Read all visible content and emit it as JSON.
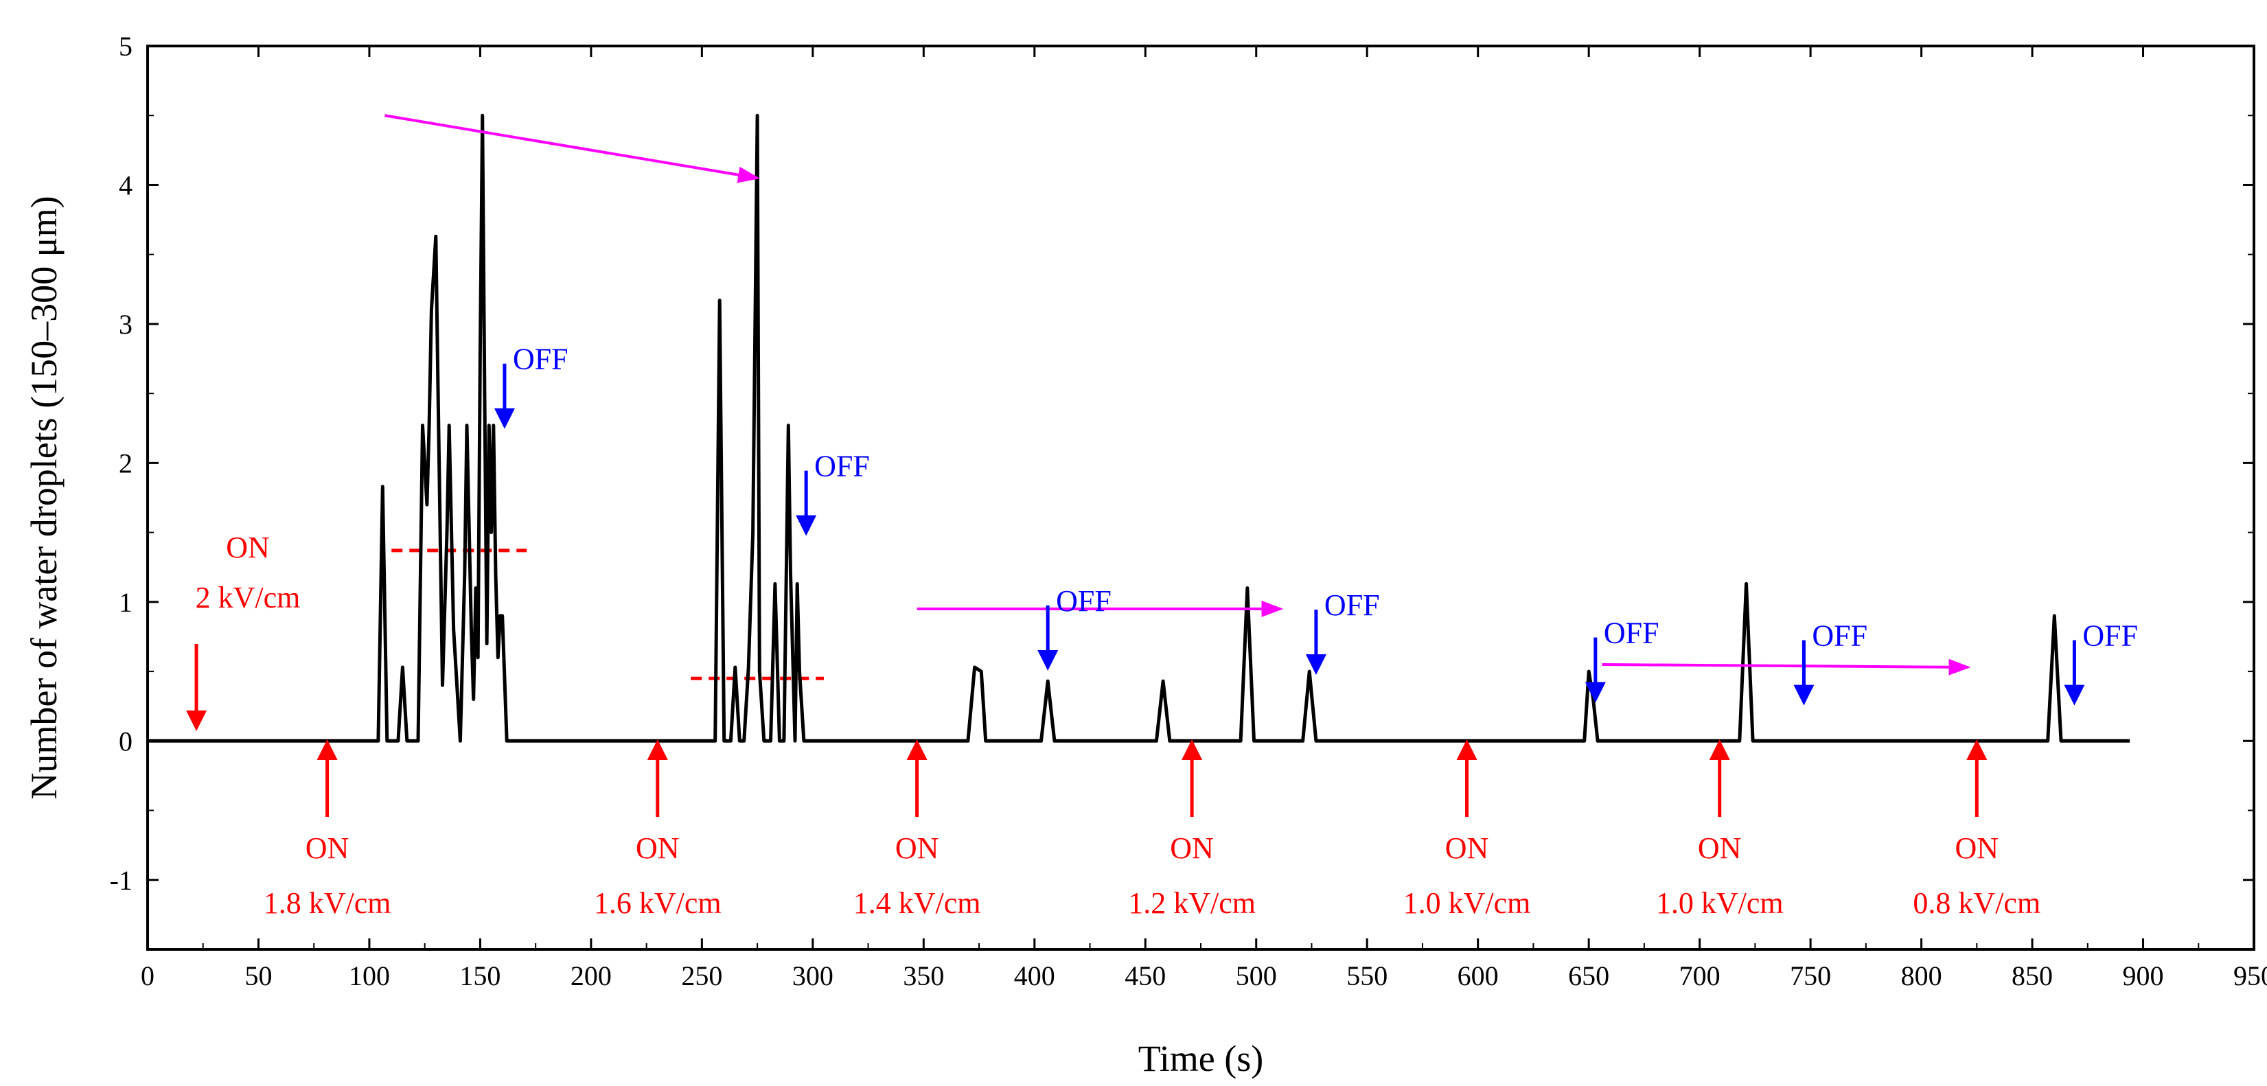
{
  "chart_data": {
    "type": "line",
    "title": "",
    "xlabel": "Time (s)",
    "ylabel": "Number of water droplets (150–300 μm)",
    "xlim": [
      0,
      950
    ],
    "ylim": [
      -1.5,
      5
    ],
    "xticks": [
      0,
      50,
      100,
      150,
      200,
      250,
      300,
      350,
      400,
      450,
      500,
      550,
      600,
      650,
      700,
      750,
      800,
      850,
      900,
      950
    ],
    "yticks": [
      -1,
      0,
      1,
      2,
      3,
      4,
      5
    ],
    "colors": {
      "trace": "#000000",
      "on": "#ff0000",
      "off": "#0000ff",
      "trend": "#ff00ff",
      "dashed": "#ff0000"
    },
    "series": [
      {
        "name": "Number of water droplets",
        "x": [
          0,
          104,
          106,
          108,
          113,
          115,
          117,
          122,
          124,
          126,
          127,
          128,
          130,
          131,
          133,
          135,
          136,
          138,
          141,
          143,
          144,
          146,
          147,
          148,
          149,
          150,
          151,
          152,
          153,
          154,
          155,
          156,
          157,
          158,
          159,
          160,
          162,
          256,
          258,
          260,
          263,
          265,
          267,
          269,
          271,
          273,
          275,
          276,
          278,
          281,
          283,
          285,
          287,
          289,
          290,
          292,
          293,
          294,
          296,
          370,
          373,
          376,
          378,
          403,
          406,
          409,
          455,
          458,
          461,
          493,
          496,
          499,
          521,
          524,
          527,
          648,
          650,
          652,
          654,
          718,
          721,
          724,
          857,
          860,
          863,
          894
        ],
        "y": [
          0,
          0,
          1.83,
          0,
          0,
          0.53,
          0,
          0,
          2.27,
          1.7,
          2.27,
          3.1,
          3.63,
          2.5,
          0.4,
          1.5,
          2.27,
          0.8,
          0,
          1.2,
          2.27,
          0.8,
          0.3,
          1.1,
          0.6,
          2.8,
          4.5,
          2.5,
          0.7,
          2.27,
          1.5,
          2.27,
          1.2,
          0.6,
          0.9,
          0.9,
          0,
          0,
          3.17,
          0,
          0,
          0.53,
          0,
          0,
          0.53,
          1.5,
          4.5,
          0.5,
          0,
          0,
          1.13,
          0,
          0,
          2.27,
          1.2,
          0,
          1.13,
          0.5,
          0,
          0,
          0.53,
          0.5,
          0,
          0,
          0.43,
          0,
          0,
          0.43,
          0,
          0,
          1.1,
          0,
          0,
          0.5,
          0,
          0,
          0.5,
          0.3,
          0,
          0,
          1.13,
          0,
          0,
          0.9,
          0,
          0
        ]
      }
    ],
    "annotations": {
      "on": [
        {
          "x": 22,
          "line1": "ON",
          "line2": "2 kV/cm"
        },
        {
          "x": 81,
          "line1": "ON",
          "line2": "1.8 kV/cm"
        },
        {
          "x": 230,
          "line1": "ON",
          "line2": "1.6 kV/cm"
        },
        {
          "x": 347,
          "line1": "ON",
          "line2": "1.4 kV/cm"
        },
        {
          "x": 471,
          "line1": "ON",
          "line2": "1.2 kV/cm"
        },
        {
          "x": 595,
          "line1": "ON",
          "line2": "1.0 kV/cm"
        },
        {
          "x": 709,
          "line1": "ON",
          "line2": "1.0 kV/cm"
        },
        {
          "x": 825,
          "line1": "ON",
          "line2": "0.8 kV/cm"
        }
      ],
      "off": [
        {
          "x": 161,
          "label": "OFF"
        },
        {
          "x": 297,
          "label": "OFF"
        },
        {
          "x": 406,
          "label": "OFF"
        },
        {
          "x": 527,
          "label": "OFF"
        },
        {
          "x": 653,
          "label": "OFF"
        },
        {
          "x": 747,
          "label": "OFF"
        },
        {
          "x": 869,
          "label": "OFF"
        }
      ],
      "trend_arrows": [
        {
          "x1": 107,
          "y1": 4.5,
          "x2": 275,
          "y2": 4.05
        },
        {
          "x1": 347,
          "y1": 0.95,
          "x2": 511,
          "y2": 0.95
        },
        {
          "x1": 656,
          "y1": 0.55,
          "x2": 821,
          "y2": 0.53
        }
      ],
      "dashed_levels": [
        {
          "x1": 110,
          "x2": 171,
          "y": 1.37
        },
        {
          "x1": 245,
          "x2": 305,
          "y": 0.45
        }
      ]
    }
  }
}
